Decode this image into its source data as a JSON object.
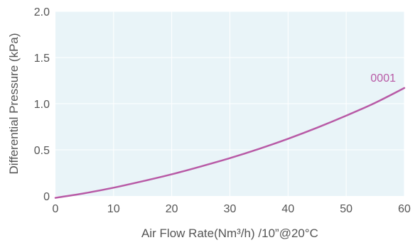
{
  "chart_data": {
    "type": "line",
    "xlabel": "Air Flow Rate(Nm³/h) /10”@20°C",
    "ylabel": "Differential Pressure (kPa)",
    "xlim": [
      0,
      60
    ],
    "ylim": [
      0,
      2.0
    ],
    "x_ticks": [
      0,
      10,
      20,
      30,
      40,
      50,
      60
    ],
    "x_tick_labels": [
      "0",
      "10",
      "20",
      "30",
      "40",
      "50",
      "60"
    ],
    "y_ticks": [
      0,
      0.5,
      1.0,
      1.5,
      2.0
    ],
    "y_tick_labels": [
      "0",
      "0.5",
      "1.0",
      "1.5",
      "2.0"
    ],
    "grid": true,
    "plot_background": "#e9f4f8",
    "series": [
      {
        "name": "0001",
        "color": "#b85aa6",
        "x": [
          0,
          5,
          10,
          15,
          20,
          25,
          30,
          35,
          40,
          45,
          50,
          55,
          60
        ],
        "y": [
          -0.02,
          0.03,
          0.09,
          0.16,
          0.235,
          0.32,
          0.41,
          0.51,
          0.62,
          0.74,
          0.87,
          1.01,
          1.17
        ]
      }
    ]
  }
}
